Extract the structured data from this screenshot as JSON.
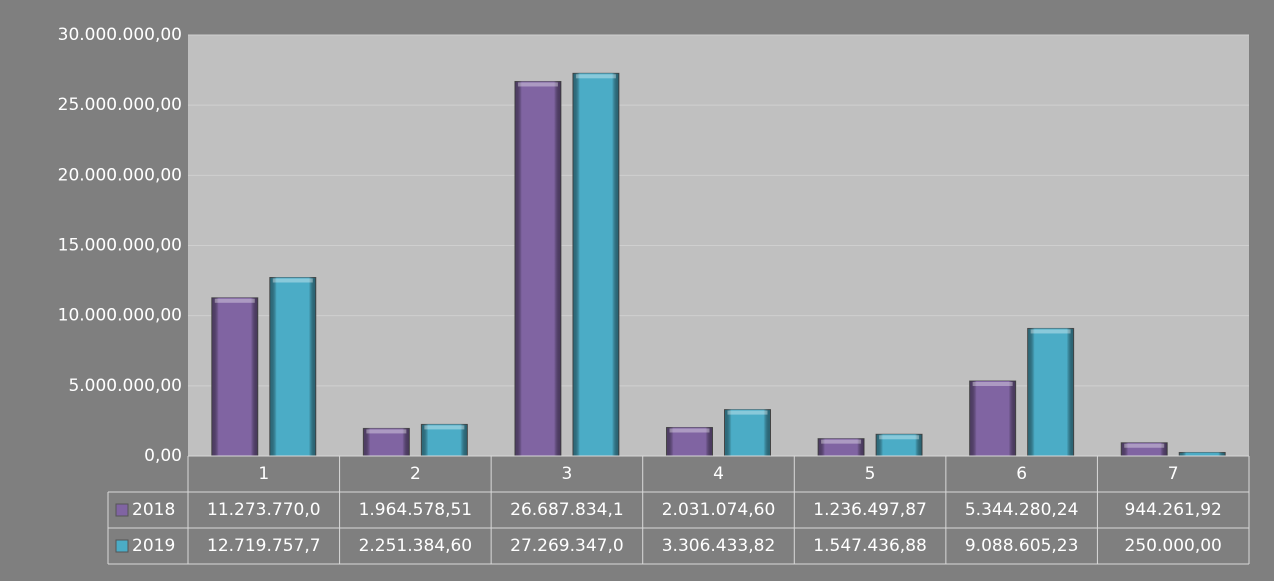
{
  "chart_data": {
    "type": "bar",
    "categories": [
      "1",
      "2",
      "3",
      "4",
      "5",
      "6",
      "7"
    ],
    "series": [
      {
        "name": "2018",
        "color": "#8064a2",
        "values": [
          11273770.0,
          1964578.51,
          26687834.1,
          2031074.6,
          1236497.87,
          5344280.24,
          944261.92
        ],
        "value_labels": [
          "11.273.770,0",
          "1.964.578,51",
          "26.687.834,1",
          "2.031.074,60",
          "1.236.497,87",
          "5.344.280,24",
          "944.261,92"
        ]
      },
      {
        "name": "2019",
        "color": "#4bacc6",
        "values": [
          12719757.7,
          2251384.6,
          27269347.0,
          3306433.82,
          1547436.88,
          9088605.23,
          250000.0
        ],
        "value_labels": [
          "12.719.757,7",
          "2.251.384,60",
          "27.269.347,0",
          "3.306.433,82",
          "1.547.436,88",
          "9.088.605,23",
          "250.000,00"
        ]
      }
    ],
    "ylim": [
      0,
      30000000
    ],
    "yticks": [
      {
        "value": 0,
        "label": "0,00"
      },
      {
        "value": 5000000,
        "label": "5.000.000,00"
      },
      {
        "value": 10000000,
        "label": "10.000.000,00"
      },
      {
        "value": 15000000,
        "label": "15.000.000,00"
      },
      {
        "value": 20000000,
        "label": "20.000.000,00"
      },
      {
        "value": 25000000,
        "label": "25.000.000,00"
      },
      {
        "value": 30000000,
        "label": "30.000.000,00"
      }
    ],
    "grid": true,
    "data_table": true
  }
}
